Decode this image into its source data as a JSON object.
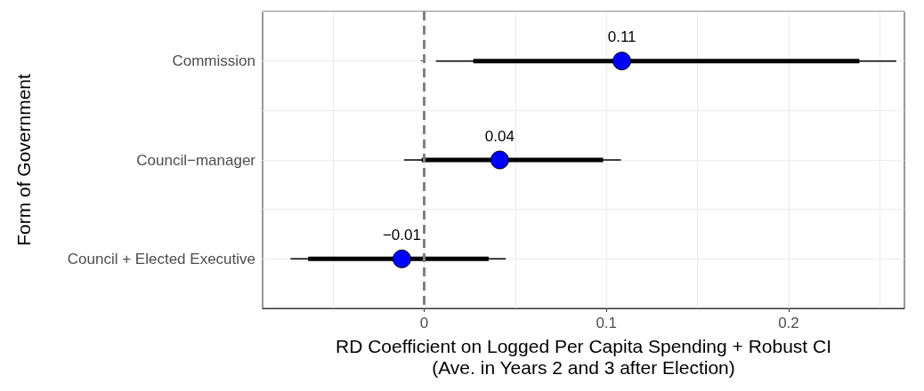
{
  "chart_data": {
    "type": "scatter",
    "orientation": "horizontal",
    "xlabel": "RD Coefficient on Logged Per Capita Spending + Robust CI\n(Ave. in Years 2 and 3 after Election)",
    "ylabel": "Form of Government",
    "categories": [
      "Commission",
      "Council−manager",
      "Council + Elected Executive"
    ],
    "series": [
      {
        "type": "bar",
        "color": "#000000",
        "base": [
          0.027,
          -0.0013,
          -0.0636
        ],
        "values": [
          0.2118,
          0.0995,
          0.099
        ]
      },
      {
        "marker": "circle",
        "color": "#0000ff",
        "values": [
          0.1085,
          0.0415,
          -0.0122
        ],
        "errors": [
          [
            0.0065,
            0.259
          ],
          [
            -0.011,
            0.108
          ],
          [
            -0.0733,
            0.0448
          ]
        ],
        "value_labels": [
          "0.11",
          "0.04",
          "−0.01"
        ]
      }
    ],
    "xlim": [
      -0.0886,
      0.2635
    ],
    "xticks": [
      {
        "value": -0.05,
        "label": null
      },
      0,
      {
        "value": 0.05,
        "label": null
      },
      0.1,
      {
        "value": 0.15,
        "label": null
      },
      0.2,
      {
        "value": 0.25,
        "label": null
      }
    ],
    "ref_lines": [
      {
        "axis": "x",
        "value": 0,
        "label": null,
        "color": "#808080",
        "line_style": "dashed"
      }
    ],
    "grid": true
  }
}
